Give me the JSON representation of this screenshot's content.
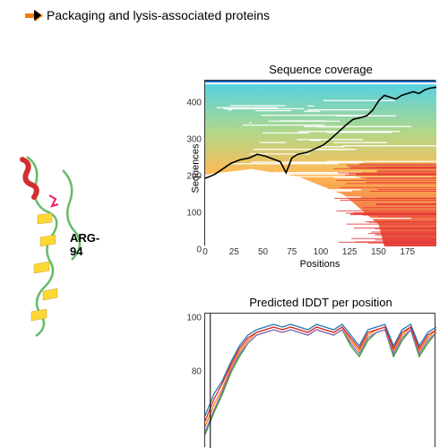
{
  "legend": {
    "items": [
      {
        "label": "",
        "color": "#f5a623"
      },
      {
        "label": "Packaging and lysis-associated proteins",
        "color": "#f57c00"
      }
    ]
  },
  "protein": {
    "label": "ARG-94",
    "colors": {
      "helix": "#d32f2f",
      "sheet": "#fdd835",
      "loop": "#66bb6a",
      "ligand": "#e91e63"
    }
  },
  "coverage_chart": {
    "title": "Sequence coverage",
    "xlabel": "Positions",
    "ylabel": "Sequences",
    "xlim": [
      0,
      200
    ],
    "ylim": [
      0,
      450
    ],
    "xticks": [
      0,
      25,
      50,
      75,
      100,
      125,
      150,
      175
    ],
    "yticks": [
      0,
      100,
      200,
      300,
      400
    ],
    "background": "#ffffff",
    "gradient_top": "#4dd0e1",
    "gradient_mid": "#aed581",
    "gradient_low": "#ffb74d",
    "gradient_bot": "#e53935",
    "line_color": "#000000",
    "black_line": [
      [
        0,
        185
      ],
      [
        8,
        195
      ],
      [
        15,
        210
      ],
      [
        22,
        225
      ],
      [
        30,
        235
      ],
      [
        38,
        240
      ],
      [
        45,
        250
      ],
      [
        52,
        245
      ],
      [
        58,
        238
      ],
      [
        65,
        230
      ],
      [
        70,
        200
      ],
      [
        75,
        240
      ],
      [
        80,
        250
      ],
      [
        88,
        255
      ],
      [
        95,
        265
      ],
      [
        102,
        275
      ],
      [
        108,
        290
      ],
      [
        115,
        310
      ],
      [
        122,
        330
      ],
      [
        128,
        345
      ],
      [
        135,
        350
      ],
      [
        140,
        355
      ],
      [
        145,
        370
      ],
      [
        150,
        395
      ],
      [
        155,
        410
      ],
      [
        160,
        405
      ],
      [
        165,
        400
      ],
      [
        170,
        410
      ],
      [
        175,
        415
      ],
      [
        180,
        420
      ],
      [
        185,
        415
      ],
      [
        190,
        425
      ],
      [
        195,
        430
      ],
      [
        200,
        432
      ]
    ]
  },
  "lddt_chart": {
    "title": "Predicted IDDT per position",
    "ylim": [
      0,
      100
    ],
    "yticks": [
      80,
      100
    ],
    "line_colors": [
      "#1f77b4",
      "#ff7f0e",
      "#2ca02c",
      "#d62728",
      "#9467bd"
    ],
    "series": [
      [
        [
          0,
          62
        ],
        [
          5,
          70
        ],
        [
          10,
          75
        ],
        [
          15,
          82
        ],
        [
          20,
          88
        ],
        [
          25,
          92
        ],
        [
          30,
          94
        ],
        [
          35,
          95
        ],
        [
          40,
          96
        ],
        [
          45,
          95
        ],
        [
          50,
          96
        ],
        [
          55,
          95
        ],
        [
          60,
          94
        ],
        [
          65,
          96
        ],
        [
          70,
          95
        ],
        [
          75,
          94
        ],
        [
          80,
          96
        ],
        [
          85,
          92
        ],
        [
          90,
          88
        ],
        [
          95,
          94
        ],
        [
          100,
          95
        ],
        [
          105,
          96
        ],
        [
          110,
          88
        ],
        [
          115,
          94
        ],
        [
          120,
          96
        ],
        [
          125,
          88
        ],
        [
          130,
          93
        ],
        [
          135,
          95
        ]
      ],
      [
        [
          0,
          58
        ],
        [
          5,
          66
        ],
        [
          10,
          72
        ],
        [
          15,
          80
        ],
        [
          20,
          86
        ],
        [
          25,
          90
        ],
        [
          30,
          93
        ],
        [
          35,
          94
        ],
        [
          40,
          95
        ],
        [
          45,
          94
        ],
        [
          50,
          95
        ],
        [
          55,
          94
        ],
        [
          60,
          93
        ],
        [
          65,
          95
        ],
        [
          70,
          94
        ],
        [
          75,
          93
        ],
        [
          80,
          95
        ],
        [
          85,
          90
        ],
        [
          90,
          86
        ],
        [
          95,
          92
        ],
        [
          100,
          94
        ],
        [
          105,
          95
        ],
        [
          110,
          86
        ],
        [
          115,
          92
        ],
        [
          120,
          95
        ],
        [
          125,
          86
        ],
        [
          130,
          91
        ],
        [
          135,
          94
        ]
      ],
      [
        [
          0,
          55
        ],
        [
          5,
          63
        ],
        [
          10,
          70
        ],
        [
          15,
          78
        ],
        [
          20,
          84
        ],
        [
          25,
          89
        ],
        [
          30,
          92
        ],
        [
          35,
          93
        ],
        [
          40,
          94
        ],
        [
          45,
          93
        ],
        [
          50,
          94
        ],
        [
          55,
          93
        ],
        [
          60,
          92
        ],
        [
          65,
          94
        ],
        [
          70,
          93
        ],
        [
          75,
          92
        ],
        [
          80,
          94
        ],
        [
          85,
          88
        ],
        [
          90,
          84
        ],
        [
          95,
          90
        ],
        [
          100,
          93
        ],
        [
          105,
          94
        ],
        [
          110,
          84
        ],
        [
          115,
          90
        ],
        [
          120,
          94
        ],
        [
          125,
          84
        ],
        [
          130,
          89
        ],
        [
          135,
          93
        ]
      ],
      [
        [
          0,
          60
        ],
        [
          5,
          68
        ],
        [
          10,
          74
        ],
        [
          15,
          81
        ],
        [
          20,
          87
        ],
        [
          25,
          91
        ],
        [
          30,
          93
        ],
        [
          35,
          94
        ],
        [
          40,
          95
        ],
        [
          45,
          94
        ],
        [
          50,
          95
        ],
        [
          55,
          94
        ],
        [
          60,
          93
        ],
        [
          65,
          95
        ],
        [
          70,
          94
        ],
        [
          75,
          93
        ],
        [
          80,
          95
        ],
        [
          85,
          91
        ],
        [
          90,
          87
        ],
        [
          95,
          93
        ],
        [
          100,
          94
        ],
        [
          105,
          95
        ],
        [
          110,
          87
        ],
        [
          115,
          93
        ],
        [
          120,
          95
        ],
        [
          125,
          87
        ],
        [
          130,
          92
        ],
        [
          135,
          94
        ]
      ],
      [
        [
          0,
          56
        ],
        [
          5,
          64
        ],
        [
          10,
          71
        ],
        [
          15,
          79
        ],
        [
          20,
          85
        ],
        [
          25,
          89
        ],
        [
          30,
          92
        ],
        [
          35,
          93
        ],
        [
          40,
          94
        ],
        [
          45,
          93
        ],
        [
          50,
          94
        ],
        [
          55,
          93
        ],
        [
          60,
          92
        ],
        [
          65,
          94
        ],
        [
          70,
          93
        ],
        [
          75,
          92
        ],
        [
          80,
          94
        ],
        [
          85,
          89
        ],
        [
          90,
          85
        ],
        [
          95,
          91
        ],
        [
          100,
          93
        ],
        [
          105,
          94
        ],
        [
          110,
          85
        ],
        [
          115,
          91
        ],
        [
          120,
          94
        ],
        [
          125,
          85
        ],
        [
          130,
          90
        ],
        [
          135,
          93
        ]
      ]
    ]
  }
}
